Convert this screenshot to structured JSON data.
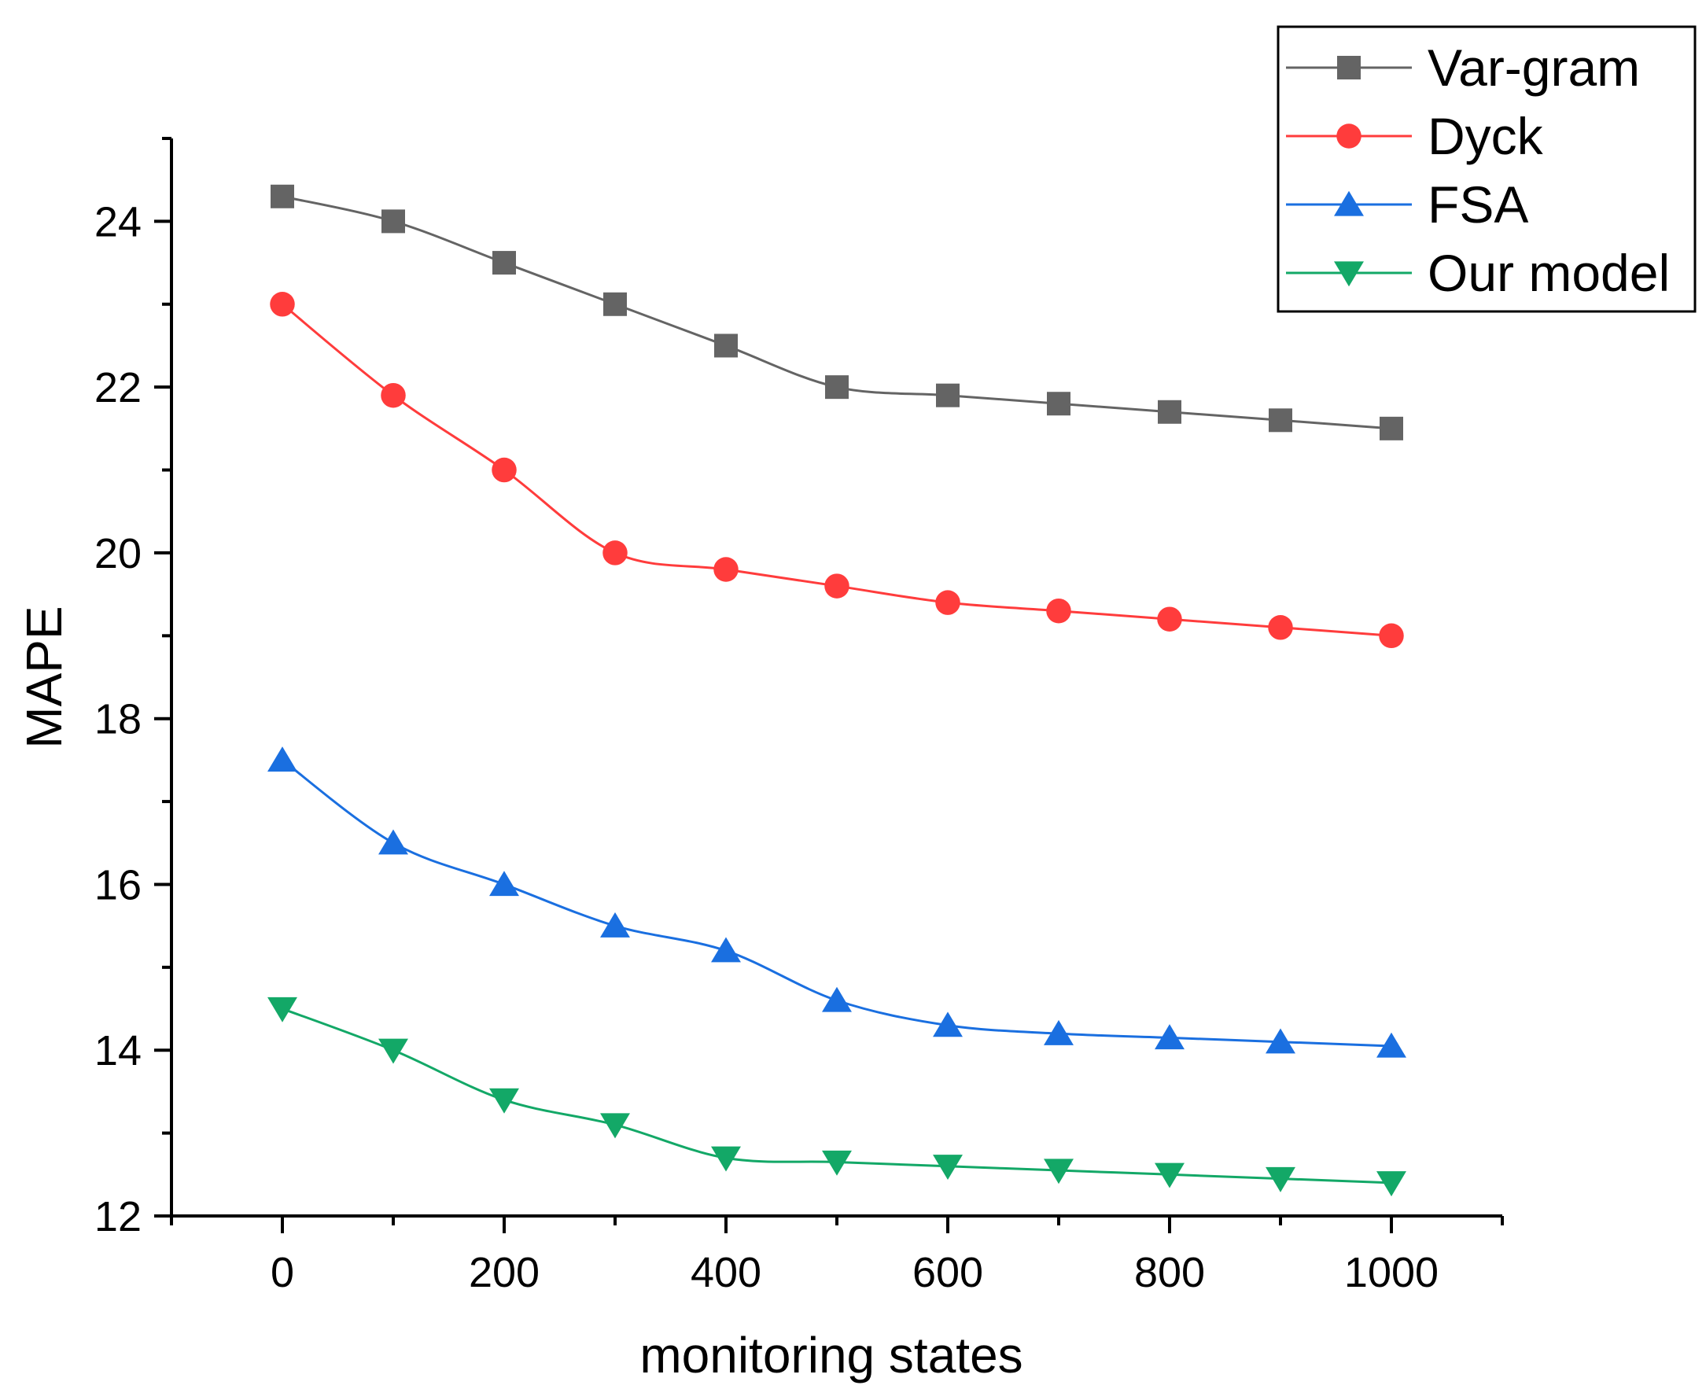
{
  "chart_data": {
    "type": "line",
    "title": "",
    "xlabel": "monitoring states",
    "ylabel": "MAPE",
    "xlim": [
      -100,
      1100
    ],
    "ylim": [
      12,
      25
    ],
    "x": [
      0,
      100,
      200,
      300,
      400,
      500,
      600,
      700,
      800,
      900,
      1000
    ],
    "x_ticks": [
      0,
      200,
      400,
      600,
      800,
      1000
    ],
    "y_ticks": [
      12,
      14,
      16,
      18,
      20,
      22,
      24
    ],
    "x_tick_labels": [
      "0",
      "200",
      "400",
      "600",
      "800",
      "1000"
    ],
    "y_tick_labels": [
      "12",
      "14",
      "16",
      "18",
      "20",
      "22",
      "24"
    ],
    "grid": false,
    "legend_position": "top-right",
    "series": [
      {
        "name": "Var-gram",
        "color": "#646464",
        "marker": "square",
        "values": [
          24.3,
          24.0,
          23.5,
          23.0,
          22.5,
          22.0,
          21.9,
          21.8,
          21.7,
          21.6,
          21.5
        ]
      },
      {
        "name": "Dyck",
        "color": "#ff3c3c",
        "marker": "circle",
        "values": [
          23.0,
          21.9,
          21.0,
          20.0,
          19.8,
          19.6,
          19.4,
          19.3,
          19.2,
          19.1,
          19.0
        ]
      },
      {
        "name": "FSA",
        "color": "#1a6fe0",
        "marker": "triangle-up",
        "values": [
          17.5,
          16.5,
          16.0,
          15.5,
          15.2,
          14.6,
          14.3,
          14.2,
          14.15,
          14.1,
          14.05
        ]
      },
      {
        "name": "Our model",
        "color": "#13a867",
        "marker": "triangle-down",
        "values": [
          14.5,
          14.0,
          13.4,
          13.1,
          12.7,
          12.65,
          12.6,
          12.55,
          12.5,
          12.45,
          12.4
        ]
      }
    ]
  }
}
